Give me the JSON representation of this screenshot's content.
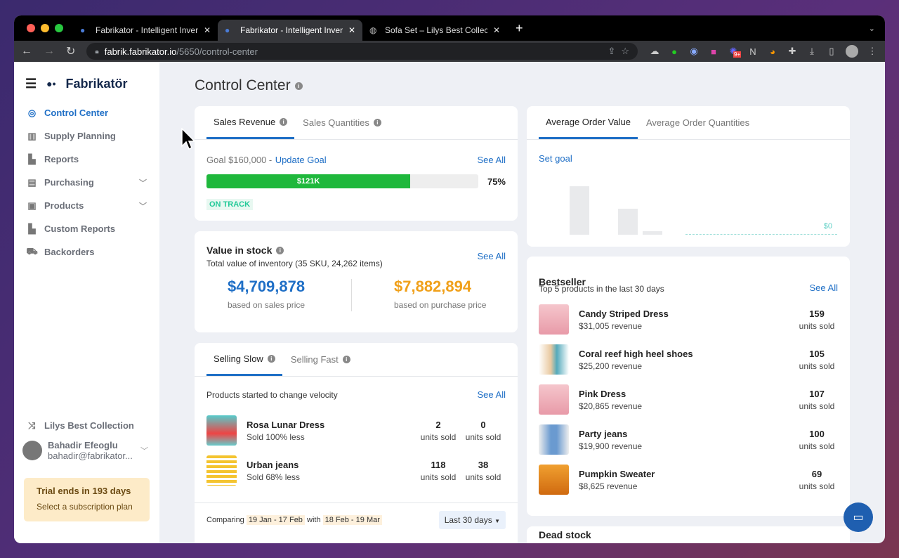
{
  "browser": {
    "tabs": [
      {
        "title": "Fabrikator - Intelligent Inventory"
      },
      {
        "title": "Fabrikator - Intelligent Inventory"
      },
      {
        "title": "Sofa Set – Lilys Best Collection"
      }
    ],
    "url_host": "fabrik.fabrikator.io",
    "url_path": "/5650/control-center",
    "extension_badge": "9+"
  },
  "sidebar": {
    "brand": "Fabrikatör",
    "items": [
      {
        "label": "Control Center",
        "icon": "compass-icon"
      },
      {
        "label": "Supply Planning",
        "icon": "container-icon"
      },
      {
        "label": "Reports",
        "icon": "bar-chart-icon"
      },
      {
        "label": "Purchasing",
        "icon": "coins-icon"
      },
      {
        "label": "Products",
        "icon": "inbox-icon"
      },
      {
        "label": "Custom Reports",
        "icon": "bar-chart-icon"
      },
      {
        "label": "Backorders",
        "icon": "truck-icon"
      }
    ],
    "store": "Lilys Best Collection",
    "user_name": "Bahadir Efeoglu",
    "user_email": "bahadir@fabrikator...",
    "trial_title": "Trial ends in 193 days",
    "trial_sub": "Select a subscription plan"
  },
  "page": {
    "title": "Control Center"
  },
  "sales": {
    "tabs": [
      "Sales Revenue",
      "Sales Quantities"
    ],
    "goal": "Goal $160,000 - ",
    "update_goal": "Update Goal",
    "see_all": "See All",
    "bar_label": "$121K",
    "progress_percent": 75,
    "percent_label": "75%",
    "status": "ON TRACK"
  },
  "stock": {
    "title": "Value in stock",
    "sub": "Total value of inventory (35 SKU, 24,262 items)",
    "see_all": "See All",
    "sales_value": "$4,709,878",
    "sales_label": "based on sales price",
    "purchase_value": "$7,882,894",
    "purchase_label": "based on purchase price"
  },
  "velocity": {
    "tabs": [
      "Selling Slow",
      "Selling Fast"
    ],
    "desc": "Products started to change velocity",
    "see_all": "See All",
    "items": [
      {
        "name": "Rosa Lunar Dress",
        "sub": "Sold 100% less",
        "a": "2",
        "b": "0",
        "unit": "units sold"
      },
      {
        "name": "Urban jeans",
        "sub": "Sold 68% less",
        "a": "118",
        "b": "38",
        "unit": "units sold"
      }
    ],
    "comparing": "Comparing",
    "range1": "19 Jan - 17 Feb",
    "with": "with",
    "range2": "18 Feb - 19 Mar",
    "period": "Last 30 days"
  },
  "aov": {
    "tabs": [
      "Average Order Value",
      "Average Order Quantities"
    ],
    "set_goal": "Set goal",
    "value_label": "$0"
  },
  "bestseller": {
    "title": "Bestseller",
    "sub": "Top 5 products in the last 30 days",
    "see_all": "See All",
    "items": [
      {
        "name": "Candy Striped Dress",
        "revenue": "$31,005 revenue",
        "units": "159",
        "unit": "units sold"
      },
      {
        "name": "Coral reef high heel shoes",
        "revenue": "$25,200 revenue",
        "units": "105",
        "unit": "units sold"
      },
      {
        "name": "Pink Dress",
        "revenue": "$20,865 revenue",
        "units": "107",
        "unit": "units sold"
      },
      {
        "name": "Party jeans",
        "revenue": "$19,900 revenue",
        "units": "100",
        "unit": "units sold"
      },
      {
        "name": "Pumpkin Sweater",
        "revenue": "$8,625 revenue",
        "units": "69",
        "unit": "units sold"
      }
    ]
  },
  "deadstock": {
    "title": "Dead stock"
  },
  "colors": {
    "accent": "#1f6fc6",
    "progress": "#1fb83c",
    "on_track": "#20c997",
    "orange": "#f0a01a"
  }
}
